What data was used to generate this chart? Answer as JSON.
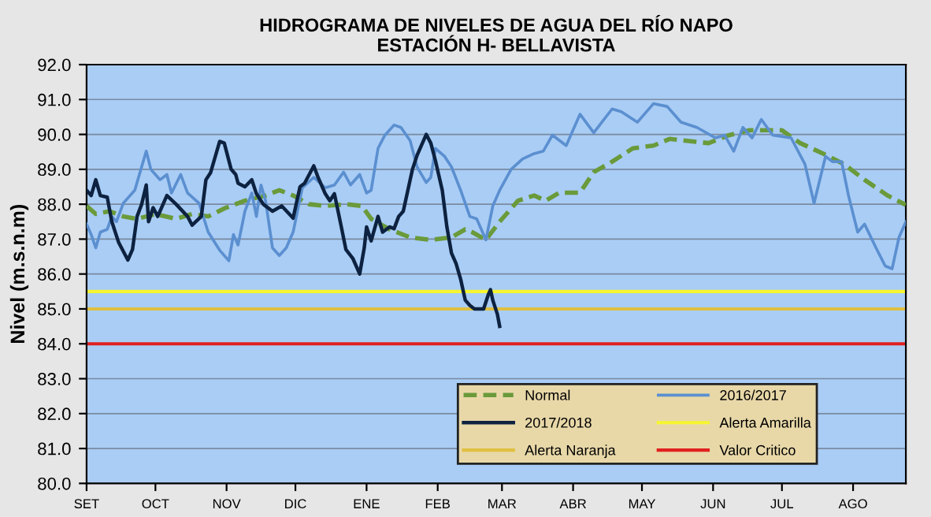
{
  "chart_data": {
    "type": "line",
    "title": "HIDROGRAMA DE NIVELES DE AGUA DEL RÍO NAPO\nESTACIÓN H- BELLAVISTA",
    "ylabel": "Nivel (m.s.n.m)",
    "xlim": [
      "2017-09-01",
      "2018-08-24"
    ],
    "xticks": [
      {
        "value": "2017-09-01",
        "label": "SET"
      },
      {
        "value": "2017-10-01",
        "label": "OCT"
      },
      {
        "value": "2017-11-01",
        "label": "NOV"
      },
      {
        "value": "2017-12-01",
        "label": "DIC"
      },
      {
        "value": "2018-01-01",
        "label": "ENE"
      },
      {
        "value": "2018-02-01",
        "label": "FEB"
      },
      {
        "value": "2018-03-01",
        "label": "MAR"
      },
      {
        "value": "2018-04-01",
        "label": "ABR"
      },
      {
        "value": "2018-05-01",
        "label": "MAY"
      },
      {
        "value": "2018-06-01",
        "label": "JUN"
      },
      {
        "value": "2018-07-01",
        "label": "JUL"
      },
      {
        "value": "2018-08-01",
        "label": "AGO"
      }
    ],
    "ylim": [
      80,
      92
    ],
    "yticks": [
      {
        "value": 80,
        "label": "80.0"
      },
      {
        "value": 81,
        "label": "81.0"
      },
      {
        "value": 82,
        "label": "82.0"
      },
      {
        "value": 83,
        "label": "83.0"
      },
      {
        "value": 84,
        "label": "84.0"
      },
      {
        "value": 85,
        "label": "85.0"
      },
      {
        "value": 86,
        "label": "86.0"
      },
      {
        "value": 87,
        "label": "87.0"
      },
      {
        "value": 88,
        "label": "88.0"
      },
      {
        "value": 89,
        "label": "89.0"
      },
      {
        "value": 90,
        "label": "90.0"
      },
      {
        "value": 91,
        "label": "91.0"
      },
      {
        "value": 92,
        "label": "92.0"
      }
    ],
    "grid": "y",
    "legend": "bottom right",
    "marker": "none",
    "series": [
      {
        "name": "Normal",
        "color": "#6a9a3a",
        "line_style": "dashed",
        "x": [
          "2017-09-01",
          "2017-09-05",
          "2017-09-11",
          "2017-09-17",
          "2017-09-23",
          "2017-10-01",
          "2017-10-10",
          "2017-10-17",
          "2017-10-24",
          "2017-10-31",
          "2017-11-09",
          "2017-11-18",
          "2017-11-24",
          "2017-11-30",
          "2017-12-07",
          "2017-12-14",
          "2017-12-23",
          "2017-12-30",
          "2018-01-03",
          "2018-01-11",
          "2018-01-20",
          "2018-01-29",
          "2018-02-07",
          "2018-02-13",
          "2018-02-16",
          "2018-02-22",
          "2018-02-28",
          "2018-03-08",
          "2018-03-15",
          "2018-03-20",
          "2018-03-26",
          "2018-04-04",
          "2018-04-10",
          "2018-04-18",
          "2018-04-27",
          "2018-05-06",
          "2018-05-13",
          "2018-05-20",
          "2018-05-30",
          "2018-06-08",
          "2018-06-17",
          "2018-06-26",
          "2018-07-01",
          "2018-07-09",
          "2018-07-19",
          "2018-07-28",
          "2018-08-06",
          "2018-08-16",
          "2018-08-24"
        ],
        "values": [
          87.95,
          87.72,
          87.8,
          87.65,
          87.58,
          87.72,
          87.58,
          87.72,
          87.65,
          87.88,
          88.1,
          88.25,
          88.4,
          88.25,
          88.0,
          87.95,
          88.0,
          87.95,
          87.58,
          87.28,
          87.05,
          86.98,
          87.05,
          87.28,
          87.2,
          86.98,
          87.5,
          88.1,
          88.25,
          88.1,
          88.33,
          88.33,
          88.92,
          89.22,
          89.6,
          89.68,
          89.87,
          89.82,
          89.75,
          89.98,
          90.12,
          90.12,
          90.12,
          89.75,
          89.45,
          89.15,
          88.7,
          88.25,
          87.98
        ]
      },
      {
        "name": "2016/2017",
        "color": "#5b8fd0",
        "line_style": "solid",
        "x": [
          "2017-09-01",
          "2017-09-03",
          "2017-09-05",
          "2017-09-07",
          "2017-09-10",
          "2017-09-12",
          "2017-09-14",
          "2017-09-17",
          "2017-09-22",
          "2017-09-24",
          "2017-09-27",
          "2017-09-29",
          "2017-10-01",
          "2017-10-03",
          "2017-10-06",
          "2017-10-08",
          "2017-10-12",
          "2017-10-15",
          "2017-10-20",
          "2017-10-24",
          "2017-10-29",
          "2017-11-02",
          "2017-11-04",
          "2017-11-06",
          "2017-11-09",
          "2017-11-12",
          "2017-11-14",
          "2017-11-16",
          "2017-11-18",
          "2017-11-21",
          "2017-11-24",
          "2017-11-27",
          "2017-11-30",
          "2017-12-04",
          "2017-12-09",
          "2017-12-14",
          "2017-12-18",
          "2017-12-22",
          "2017-12-25",
          "2017-12-29",
          "2018-01-01",
          "2018-01-03",
          "2018-01-06",
          "2018-01-09",
          "2018-01-13",
          "2018-01-16",
          "2018-01-20",
          "2018-01-23",
          "2018-01-27",
          "2018-01-29",
          "2018-01-31",
          "2018-02-04",
          "2018-02-07",
          "2018-02-11",
          "2018-02-15",
          "2018-02-18",
          "2018-02-22",
          "2018-02-25",
          "2018-02-28",
          "2018-03-05",
          "2018-03-10",
          "2018-03-15",
          "2018-03-19",
          "2018-03-23",
          "2018-03-29",
          "2018-04-04",
          "2018-04-10",
          "2018-04-18",
          "2018-04-22",
          "2018-04-29",
          "2018-05-06",
          "2018-05-12",
          "2018-05-18",
          "2018-05-25",
          "2018-06-02",
          "2018-06-06",
          "2018-06-10",
          "2018-06-14",
          "2018-06-18",
          "2018-06-22",
          "2018-06-27",
          "2018-07-05",
          "2018-07-11",
          "2018-07-15",
          "2018-07-20",
          "2018-07-23",
          "2018-07-27",
          "2018-07-30",
          "2018-08-03",
          "2018-08-06",
          "2018-08-11",
          "2018-08-15",
          "2018-08-18",
          "2018-08-21",
          "2018-08-24"
        ],
        "values": [
          87.43,
          87.13,
          86.75,
          87.2,
          87.28,
          87.65,
          87.5,
          88.03,
          88.4,
          88.85,
          89.52,
          89.0,
          88.85,
          88.7,
          88.85,
          88.32,
          88.85,
          88.32,
          88.03,
          87.2,
          86.68,
          86.38,
          87.13,
          86.83,
          87.8,
          88.32,
          87.65,
          88.55,
          88.1,
          86.75,
          86.53,
          86.75,
          87.2,
          88.47,
          88.77,
          88.47,
          88.55,
          88.92,
          88.55,
          88.85,
          88.32,
          88.4,
          89.6,
          89.98,
          90.27,
          90.2,
          89.82,
          89.07,
          88.62,
          88.77,
          89.6,
          89.37,
          89.07,
          88.4,
          87.65,
          87.58,
          86.98,
          87.95,
          88.4,
          89.0,
          89.3,
          89.45,
          89.52,
          89.98,
          89.68,
          90.58,
          90.05,
          90.73,
          90.65,
          90.35,
          90.88,
          90.8,
          90.35,
          90.2,
          89.9,
          89.98,
          89.52,
          90.2,
          89.9,
          90.43,
          89.98,
          89.9,
          89.15,
          88.03,
          89.37,
          89.22,
          89.22,
          88.25,
          87.2,
          87.43,
          86.75,
          86.23,
          86.15,
          87.05,
          87.5
        ]
      },
      {
        "name": "2017/2018",
        "color": "#0d2240",
        "line_style": "solid",
        "x": [
          "2017-09-01",
          "2017-09-03",
          "2017-09-05",
          "2017-09-07",
          "2017-09-10",
          "2017-09-12",
          "2017-09-15",
          "2017-09-19",
          "2017-09-21",
          "2017-09-23",
          "2017-09-25",
          "2017-09-27",
          "2017-09-28",
          "2017-09-30",
          "2017-10-02",
          "2017-10-06",
          "2017-10-10",
          "2017-10-15",
          "2017-10-17",
          "2017-10-21",
          "2017-10-23",
          "2017-10-25",
          "2017-10-29",
          "2017-10-31",
          "2017-11-03",
          "2017-11-05",
          "2017-11-06",
          "2017-11-09",
          "2017-11-12",
          "2017-11-14",
          "2017-11-17",
          "2017-11-21",
          "2017-11-25",
          "2017-11-30",
          "2017-12-03",
          "2017-12-05",
          "2017-12-09",
          "2017-12-11",
          "2017-12-14",
          "2017-12-16",
          "2017-12-18",
          "2017-12-21",
          "2017-12-23",
          "2017-12-26",
          "2017-12-29",
          "2017-12-31",
          "2018-01-01",
          "2018-01-03",
          "2018-01-06",
          "2018-01-08",
          "2018-01-11",
          "2018-01-13",
          "2018-01-15",
          "2018-01-17",
          "2018-01-21",
          "2018-01-23",
          "2018-01-27",
          "2018-01-29",
          "2018-01-31",
          "2018-02-03",
          "2018-02-05",
          "2018-02-07",
          "2018-02-09",
          "2018-02-11",
          "2018-02-13",
          "2018-02-15",
          "2018-02-17",
          "2018-02-21",
          "2018-02-23",
          "2018-02-24",
          "2018-02-25",
          "2018-02-27",
          "2018-02-28"
        ],
        "values": [
          88.4,
          88.25,
          88.7,
          88.25,
          88.2,
          87.5,
          86.9,
          86.4,
          86.7,
          87.65,
          88.0,
          88.55,
          87.5,
          87.9,
          87.65,
          88.25,
          88.0,
          87.65,
          87.4,
          87.65,
          88.7,
          88.9,
          89.8,
          89.75,
          89.0,
          88.85,
          88.6,
          88.5,
          88.7,
          88.3,
          88.0,
          87.8,
          87.95,
          87.6,
          88.5,
          88.6,
          89.1,
          88.75,
          88.3,
          88.1,
          88.3,
          87.35,
          86.7,
          86.45,
          86.0,
          86.75,
          87.35,
          86.95,
          87.65,
          87.2,
          87.35,
          87.3,
          87.65,
          87.8,
          89.0,
          89.4,
          90.0,
          89.75,
          89.25,
          88.4,
          87.35,
          86.6,
          86.3,
          85.85,
          85.25,
          85.1,
          85.0,
          85.0,
          85.4,
          85.55,
          85.25,
          84.85,
          84.5
        ]
      }
    ],
    "ref_lines": [
      {
        "axis": "y",
        "value": 85.5,
        "label": "Alerta Amarilla",
        "color": "#f5f530"
      },
      {
        "axis": "y",
        "value": 85.0,
        "label": "Alerta Naranja",
        "color": "#e0c040"
      },
      {
        "axis": "y",
        "value": 84.0,
        "label": "Valor Critico",
        "color": "#e02020"
      }
    ]
  }
}
